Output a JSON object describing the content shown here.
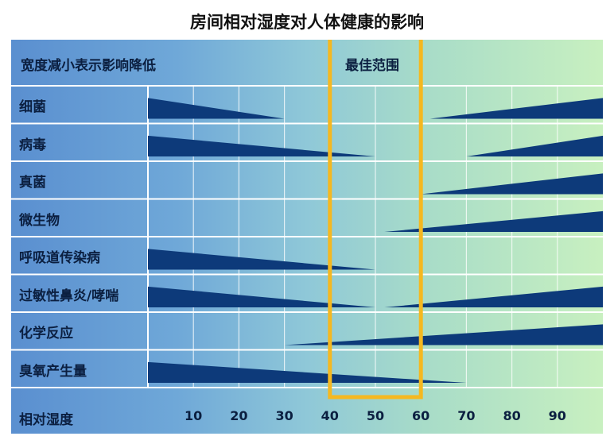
{
  "chart_data": {
    "type": "area",
    "title": "房间相对湿度对人体健康的影响",
    "legend_note": "宽度减小表示影响降低",
    "optimal_label": "最佳范围",
    "optimal_range": [
      40,
      60
    ],
    "xlabel": "相对湿度",
    "x_ticks": [
      10,
      20,
      30,
      40,
      50,
      60,
      70,
      80,
      90
    ],
    "xlim": [
      0,
      100
    ],
    "series": [
      {
        "name": "细菌",
        "points": [
          [
            0,
            1.0
          ],
          [
            30,
            0.0
          ]
        ],
        "points2": [
          [
            62,
            0.0
          ],
          [
            100,
            1.0
          ]
        ]
      },
      {
        "name": "病毒",
        "points": [
          [
            0,
            1.0
          ],
          [
            50,
            0.0
          ]
        ],
        "points2": [
          [
            70,
            0.0
          ],
          [
            100,
            1.0
          ]
        ]
      },
      {
        "name": "真菌",
        "points2": [
          [
            60,
            0.0
          ],
          [
            100,
            1.0
          ]
        ]
      },
      {
        "name": "微生物",
        "points2": [
          [
            52,
            0.0
          ],
          [
            100,
            1.0
          ]
        ]
      },
      {
        "name": "呼吸道传染病",
        "points": [
          [
            0,
            1.0
          ],
          [
            50,
            0.0
          ]
        ]
      },
      {
        "name": "过敏性鼻炎/哮喘",
        "points": [
          [
            0,
            1.0
          ],
          [
            50,
            0.0
          ]
        ],
        "points2": [
          [
            52,
            0.0
          ],
          [
            100,
            1.0
          ]
        ]
      },
      {
        "name": "化学反应",
        "points2": [
          [
            30,
            0.0
          ],
          [
            100,
            1.0
          ]
        ]
      },
      {
        "name": "臭氧产生量",
        "points": [
          [
            0,
            1.0
          ],
          [
            70,
            0.0
          ]
        ]
      }
    ],
    "colors": {
      "band": "#0d3a7a",
      "optimal_box": "#f5b820",
      "grid": "#ffffff"
    }
  }
}
